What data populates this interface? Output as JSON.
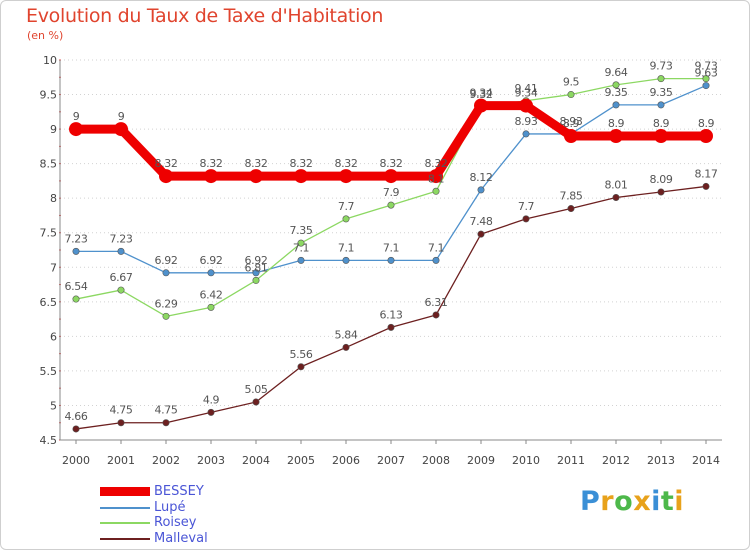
{
  "chart_data": {
    "type": "line",
    "title": "Evolution du Taux de Taxe d'Habitation",
    "subtitle": "(en %)",
    "x": [
      "2000",
      "2001",
      "2002",
      "2003",
      "2004",
      "2005",
      "2006",
      "2007",
      "2008",
      "2009",
      "2010",
      "2011",
      "2012",
      "2013",
      "2014"
    ],
    "ylim": [
      4.5,
      10
    ],
    "yticks": [
      "4.5",
      "5",
      "5.5",
      "6",
      "6.5",
      "7",
      "7.5",
      "8",
      "8.5",
      "9",
      "9.5",
      "10"
    ],
    "grid": "horizontal dotted",
    "legend_position": "bottom-left",
    "series": [
      {
        "name": "BESSEY",
        "color": "#ee0000",
        "values": [
          9,
          9,
          8.32,
          8.32,
          8.32,
          8.32,
          8.32,
          8.32,
          8.32,
          9.34,
          9.34,
          8.9,
          8.9,
          8.9,
          8.9
        ],
        "labels": [
          "9",
          "9",
          "8.32",
          "8.32",
          "8.32",
          "8.32",
          "8.32",
          "8.32",
          "8.32",
          "9.34",
          "9.34",
          "8.9",
          "8.9",
          "8.9",
          "8.9"
        ]
      },
      {
        "name": "Lupé",
        "color": "#4f91cc",
        "values": [
          7.23,
          7.23,
          6.92,
          6.92,
          6.92,
          7.1,
          7.1,
          7.1,
          7.1,
          8.12,
          8.93,
          8.93,
          9.35,
          9.35,
          9.63
        ],
        "labels": [
          "7.23",
          "7.23",
          "6.92",
          "6.92",
          "6.92",
          "7.1",
          "7.1",
          "7.1",
          "7.1",
          "8.12",
          "8.93",
          "8.93",
          "9.35",
          "9.35",
          "9.63"
        ]
      },
      {
        "name": "Roisey",
        "color": "#8cd862",
        "values": [
          6.54,
          6.67,
          6.29,
          6.42,
          6.81,
          7.35,
          7.7,
          7.9,
          8.1,
          9.32,
          9.41,
          9.5,
          9.64,
          9.73,
          9.73
        ],
        "labels": [
          "6.54",
          "6.67",
          "6.29",
          "6.42",
          "6.81",
          "7.35",
          "7.7",
          "7.9",
          "8.1",
          "9.32",
          "9.41",
          "9.5",
          "9.64",
          "9.73",
          "9.73"
        ]
      },
      {
        "name": "Malleval",
        "color": "#6d2020",
        "values": [
          4.66,
          4.75,
          4.75,
          4.9,
          5.05,
          5.56,
          5.84,
          6.13,
          6.31,
          7.48,
          7.7,
          7.85,
          8.01,
          8.09,
          8.17
        ],
        "labels": [
          "4.66",
          "4.75",
          "4.75",
          "4.9",
          "5.05",
          "5.56",
          "5.84",
          "6.13",
          "6.31",
          "7.48",
          "7.7",
          "7.85",
          "8.01",
          "8.09",
          "8.17"
        ]
      }
    ]
  },
  "legend": {
    "items": [
      {
        "label": "BESSEY",
        "color": "#ee0000"
      },
      {
        "label": "Lupé",
        "color": "#4f91cc"
      },
      {
        "label": "Roisey",
        "color": "#8cd862"
      },
      {
        "label": "Malleval",
        "color": "#6d2020"
      }
    ]
  },
  "logo": {
    "letters": [
      "P",
      "r",
      "o",
      "x",
      "i",
      "t",
      "i"
    ],
    "colors": [
      "#3a8fd6",
      "#e8a21b",
      "#4db84a",
      "#e8a21b",
      "#3a8fd6",
      "#4db84a",
      "#e8a21b"
    ]
  }
}
